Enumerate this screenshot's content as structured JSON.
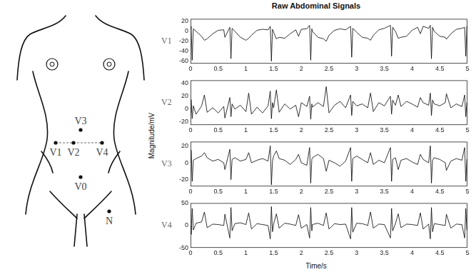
{
  "figure": {
    "title": "Raw Abdominal Signals",
    "xlabel": "Time/s",
    "ylabel": "Magnitude/mV"
  },
  "diagram": {
    "electrodes": [
      "V3",
      "V1",
      "V2",
      "V4",
      "V0",
      "N"
    ]
  },
  "chart_data": [
    {
      "type": "line",
      "ylabel": "V1",
      "color": "#000000",
      "grid": false,
      "xlim": [
        0,
        5
      ],
      "xticks": [
        0,
        0.5,
        1,
        1.5,
        2,
        2.5,
        3,
        3.5,
        4,
        4.5,
        5
      ],
      "ylim": [
        -65,
        25
      ],
      "yticks": [
        -60,
        -40,
        -20,
        0,
        20
      ],
      "x": [
        0,
        0.01,
        0.03,
        0.05,
        0.1,
        0.2,
        0.25,
        0.3,
        0.4,
        0.5,
        0.6,
        0.62,
        0.71,
        0.73,
        0.75,
        0.8,
        0.9,
        1.0,
        1.05,
        1.1,
        1.2,
        1.3,
        1.4,
        1.44,
        1.46,
        1.48,
        1.5,
        1.55,
        1.6,
        1.7,
        1.8,
        1.9,
        1.95,
        2.0,
        2.1,
        2.15,
        2.17,
        2.19,
        2.2,
        2.3,
        2.4,
        2.45,
        2.5,
        2.6,
        2.7,
        2.8,
        2.89,
        2.91,
        2.93,
        3.0,
        3.1,
        3.2,
        3.25,
        3.3,
        3.4,
        3.5,
        3.61,
        3.63,
        3.65,
        3.7,
        3.75,
        3.8,
        3.9,
        4.0,
        4.1,
        4.15,
        4.2,
        4.3,
        4.33,
        4.35,
        4.37,
        4.4,
        4.5,
        4.6,
        4.62,
        4.7,
        4.8,
        4.9,
        4.95,
        4.97,
        4.99,
        5.0
      ],
      "values": [
        5,
        10,
        -58,
        5,
        0,
        -10,
        -18,
        -15,
        -5,
        2,
        3,
        -12,
        8,
        -55,
        6,
        0,
        -12,
        -18,
        -14,
        -8,
        2,
        4,
        3,
        10,
        -60,
        4,
        -2,
        -15,
        -12,
        -14,
        -5,
        3,
        -10,
        4,
        5,
        12,
        -58,
        5,
        0,
        -12,
        -15,
        -20,
        -8,
        2,
        5,
        3,
        10,
        -52,
        6,
        -2,
        -12,
        -14,
        -18,
        -8,
        3,
        6,
        12,
        -50,
        8,
        0,
        -14,
        -12,
        -10,
        2,
        8,
        -5,
        10,
        6,
        12,
        -55,
        8,
        0,
        -10,
        -12,
        -16,
        -5,
        4,
        6,
        8,
        -50,
        10,
        5
      ]
    },
    {
      "type": "line",
      "ylabel": "V2",
      "color": "#000000",
      "grid": false,
      "xlim": [
        0,
        5
      ],
      "xticks": [
        0,
        0.5,
        1,
        1.5,
        2,
        2.5,
        3,
        3.5,
        4,
        4.5,
        5
      ],
      "ylim": [
        -25,
        45
      ],
      "yticks": [
        -20,
        0,
        20,
        40
      ],
      "x": [
        0,
        0.01,
        0.03,
        0.05,
        0.1,
        0.2,
        0.25,
        0.3,
        0.4,
        0.5,
        0.6,
        0.62,
        0.71,
        0.73,
        0.75,
        0.8,
        0.9,
        1.0,
        1.05,
        1.1,
        1.2,
        1.3,
        1.4,
        1.44,
        1.46,
        1.48,
        1.5,
        1.55,
        1.6,
        1.7,
        1.8,
        1.9,
        1.95,
        2.0,
        2.1,
        2.15,
        2.17,
        2.19,
        2.2,
        2.3,
        2.4,
        2.45,
        2.5,
        2.6,
        2.7,
        2.8,
        2.89,
        2.91,
        2.93,
        3.0,
        3.1,
        3.2,
        3.25,
        3.3,
        3.4,
        3.5,
        3.61,
        3.63,
        3.65,
        3.7,
        3.75,
        3.8,
        3.9,
        4.0,
        4.1,
        4.15,
        4.2,
        4.3,
        4.33,
        4.35,
        4.37,
        4.4,
        4.5,
        4.6,
        4.62,
        4.7,
        4.8,
        4.9,
        4.95,
        4.97,
        4.99,
        5.0
      ],
      "values": [
        -5,
        15,
        -15,
        5,
        -8,
        5,
        22,
        -5,
        2,
        -6,
        4,
        -14,
        18,
        -12,
        8,
        0,
        6,
        -4,
        25,
        -8,
        3,
        -6,
        5,
        28,
        -15,
        10,
        2,
        30,
        -5,
        8,
        0,
        6,
        -12,
        10,
        4,
        20,
        -16,
        8,
        3,
        10,
        4,
        35,
        -6,
        6,
        12,
        2,
        22,
        -10,
        12,
        5,
        8,
        2,
        25,
        -4,
        10,
        5,
        20,
        -8,
        14,
        6,
        22,
        4,
        12,
        8,
        3,
        18,
        10,
        6,
        25,
        -10,
        14,
        8,
        5,
        10,
        24,
        2,
        8,
        4,
        22,
        -12,
        10,
        6
      ]
    },
    {
      "type": "line",
      "ylabel": "V3",
      "color": "#000000",
      "grid": false,
      "xlim": [
        0,
        5
      ],
      "xticks": [
        0,
        0.5,
        1,
        1.5,
        2,
        2.5,
        3,
        3.5,
        4,
        4.5,
        5
      ],
      "ylim": [
        -28,
        25
      ],
      "yticks": [
        -20,
        0,
        20
      ],
      "x": [
        0,
        0.01,
        0.03,
        0.05,
        0.1,
        0.2,
        0.25,
        0.3,
        0.4,
        0.5,
        0.6,
        0.62,
        0.71,
        0.73,
        0.75,
        0.8,
        0.9,
        1.0,
        1.05,
        1.1,
        1.2,
        1.3,
        1.4,
        1.44,
        1.46,
        1.48,
        1.5,
        1.55,
        1.6,
        1.7,
        1.8,
        1.9,
        1.95,
        2.0,
        2.1,
        2.15,
        2.17,
        2.19,
        2.2,
        2.3,
        2.4,
        2.45,
        2.5,
        2.6,
        2.7,
        2.8,
        2.89,
        2.91,
        2.93,
        3.0,
        3.1,
        3.2,
        3.25,
        3.3,
        3.4,
        3.5,
        3.61,
        3.63,
        3.65,
        3.7,
        3.75,
        3.8,
        3.9,
        4.0,
        4.1,
        4.15,
        4.2,
        4.3,
        4.33,
        4.35,
        4.37,
        4.4,
        4.5,
        4.6,
        4.62,
        4.7,
        4.8,
        4.9,
        4.95,
        4.97,
        4.99,
        5.0
      ],
      "values": [
        0,
        15,
        -22,
        3,
        5,
        8,
        12,
        6,
        2,
        4,
        0,
        -8,
        16,
        -20,
        4,
        6,
        2,
        4,
        12,
        0,
        3,
        5,
        2,
        20,
        -26,
        2,
        8,
        14,
        5,
        3,
        -2,
        4,
        10,
        0,
        -3,
        18,
        -24,
        4,
        6,
        10,
        5,
        -10,
        3,
        0,
        -4,
        2,
        18,
        -22,
        5,
        8,
        4,
        0,
        12,
        -2,
        3,
        0,
        18,
        -22,
        4,
        6,
        -8,
        3,
        5,
        1,
        -2,
        10,
        4,
        0,
        20,
        -24,
        3,
        6,
        4,
        0,
        -9,
        2,
        5,
        3,
        18,
        -22,
        4,
        2
      ]
    },
    {
      "type": "line",
      "ylabel": "V4",
      "color": "#000000",
      "grid": false,
      "xlim": [
        0,
        5
      ],
      "xticks": [
        0,
        0.5,
        1,
        1.5,
        2,
        2.5,
        3,
        3.5,
        4,
        4.5,
        5
      ],
      "ylim": [
        -50,
        50
      ],
      "yticks": [
        -50,
        0,
        50
      ],
      "x": [
        0,
        0.01,
        0.03,
        0.05,
        0.1,
        0.2,
        0.25,
        0.3,
        0.4,
        0.5,
        0.6,
        0.62,
        0.71,
        0.73,
        0.75,
        0.8,
        0.9,
        1.0,
        1.05,
        1.1,
        1.2,
        1.3,
        1.4,
        1.44,
        1.46,
        1.48,
        1.5,
        1.55,
        1.6,
        1.7,
        1.8,
        1.9,
        1.95,
        2.0,
        2.1,
        2.15,
        2.17,
        2.19,
        2.2,
        2.3,
        2.4,
        2.45,
        2.5,
        2.6,
        2.7,
        2.8,
        2.89,
        2.91,
        2.93,
        3.0,
        3.1,
        3.2,
        3.25,
        3.3,
        3.4,
        3.5,
        3.61,
        3.63,
        3.65,
        3.7,
        3.75,
        3.8,
        3.9,
        4.0,
        4.1,
        4.15,
        4.2,
        4.3,
        4.33,
        4.35,
        4.37,
        4.4,
        4.5,
        4.6,
        4.62,
        4.7,
        4.8,
        4.9,
        4.95,
        4.97,
        4.99,
        5.0
      ],
      "values": [
        0,
        -20,
        38,
        -10,
        5,
        8,
        30,
        -5,
        3,
        2,
        0,
        25,
        -28,
        40,
        -12,
        4,
        6,
        2,
        28,
        -8,
        4,
        2,
        0,
        -30,
        42,
        -14,
        3,
        26,
        -6,
        5,
        3,
        0,
        24,
        -6,
        2,
        -28,
        40,
        -12,
        2,
        5,
        0,
        28,
        -8,
        4,
        2,
        3,
        -30,
        40,
        -15,
        5,
        4,
        0,
        30,
        -6,
        3,
        2,
        -28,
        38,
        -12,
        4,
        26,
        -5,
        3,
        2,
        0,
        28,
        -8,
        3,
        -30,
        40,
        -14,
        4,
        2,
        0,
        25,
        -6,
        3,
        2,
        -28,
        38,
        -10,
        0
      ]
    }
  ]
}
